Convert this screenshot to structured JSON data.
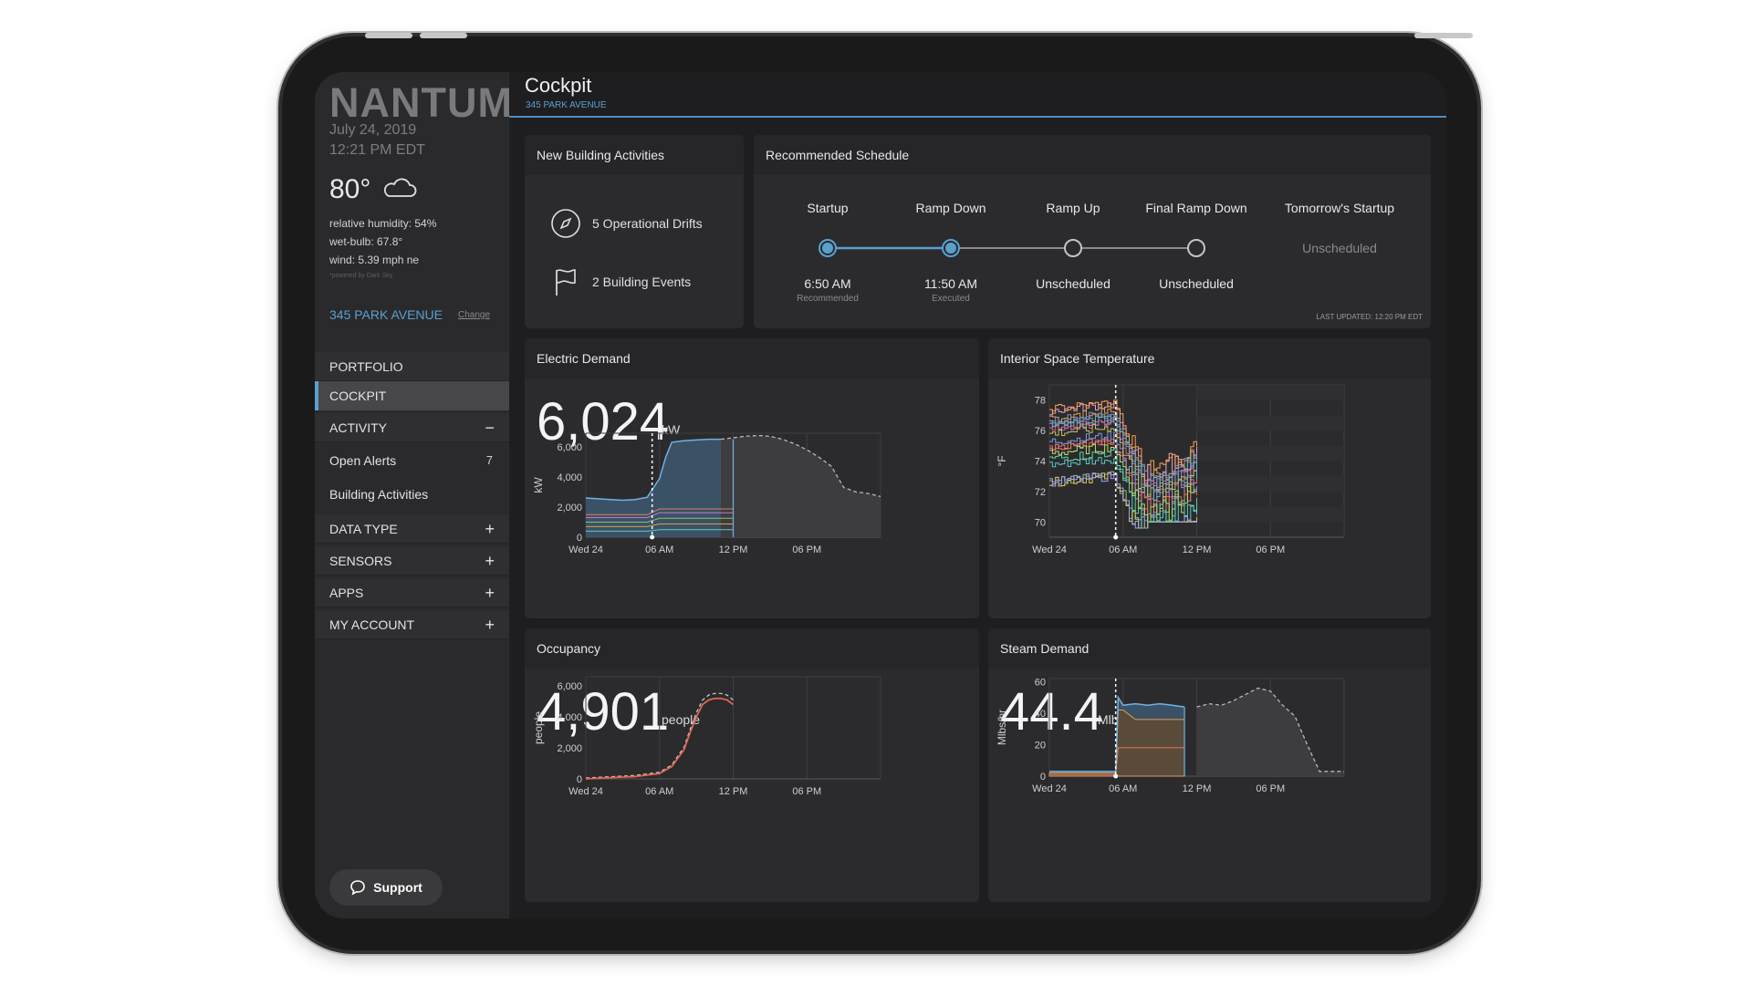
{
  "sidebar": {
    "logo": "NANTUM",
    "date": "July 24, 2019",
    "time": "12:21 PM EDT",
    "temperature": "80°",
    "humidity": "relative humidity: 54%",
    "wetbulb": "wet-bulb: 67.8°",
    "wind": "wind: 5.39 mph ne",
    "powered_by": "*powered by Dark Sky",
    "building": "345 PARK AVENUE",
    "change_label": "Change",
    "nav": {
      "portfolio": "PORTFOLIO",
      "cockpit": "COCKPIT",
      "activity": "ACTIVITY",
      "activity_sign": "−",
      "open_alerts": "Open Alerts",
      "open_alerts_count": "7",
      "building_activities": "Building Activities",
      "data_type": "DATA TYPE",
      "sensors": "SENSORS",
      "apps": "APPS",
      "my_account": "MY ACCOUNT",
      "plus": "+"
    },
    "support_label": "Support"
  },
  "page": {
    "title": "Cockpit",
    "subtitle": "345 PARK AVENUE"
  },
  "activities": {
    "title": "New Building Activities",
    "drifts": "5 Operational Drifts",
    "events": "2 Building Events"
  },
  "schedule": {
    "title": "Recommended Schedule",
    "steps": [
      {
        "label": "Startup",
        "time": "6:50 AM",
        "note": "Recommended"
      },
      {
        "label": "Ramp Down",
        "time": "11:50 AM",
        "note": "Executed"
      },
      {
        "label": "Ramp Up",
        "time": "Unscheduled",
        "note": ""
      },
      {
        "label": "Final Ramp Down",
        "time": "Unscheduled",
        "note": ""
      }
    ],
    "tomorrow_label": "Tomorrow's Startup",
    "tomorrow_value": "Unscheduled",
    "last_updated": "LAST UPDATED: 12:20 PM EDT",
    "colors": {
      "accent": "#5aa0cf"
    }
  },
  "x_ticks": [
    "Wed 24",
    "06 AM",
    "12 PM",
    "06 PM"
  ],
  "electric": {
    "title": "Electric Demand",
    "value": "6,024",
    "unit": "kW"
  },
  "temperature": {
    "title": "Interior Space Temperature"
  },
  "occupancy": {
    "title": "Occupancy",
    "value": "4,901",
    "unit": "people"
  },
  "steam": {
    "title": "Steam Demand",
    "value": "44.4",
    "unit": "Mlbs/hr"
  },
  "chart_data": [
    {
      "type": "area",
      "id": "electric",
      "ylabel": "kW",
      "ylim": [
        0,
        7000
      ],
      "yticks": [
        "6,000",
        "4,000",
        "2,000",
        "0"
      ],
      "ytick_values": [
        6000,
        4000,
        2000,
        0
      ],
      "x": [
        0,
        1,
        2,
        3,
        4,
        5,
        6,
        6.5,
        7,
        8,
        9,
        10,
        11,
        12,
        13,
        14,
        15,
        16,
        17,
        18,
        19,
        20,
        21,
        22,
        23,
        24
      ],
      "series": [
        {
          "values": [
            2600,
            2550,
            2500,
            2450,
            2500,
            2650,
            3900,
            5300,
            6300,
            6400,
            6450,
            6500,
            6500,
            null,
            null,
            null,
            null,
            null,
            null,
            null,
            null,
            null,
            null,
            null,
            null,
            null
          ]
        },
        {
          "values": [
            null,
            null,
            null,
            null,
            null,
            null,
            null,
            null,
            null,
            null,
            null,
            null,
            6500,
            6600,
            6700,
            6750,
            6700,
            6500,
            6200,
            5800,
            5300,
            4700,
            3300,
            3000,
            2900,
            2700
          ]
        }
      ],
      "now_x": 5.4,
      "colors": {
        "actual": "#5aa0cf",
        "forecast": "#9a9a9d"
      }
    },
    {
      "type": "line",
      "id": "temperature",
      "ylabel": "°F",
      "ylim": [
        69,
        79
      ],
      "yticks": [
        "78",
        "76",
        "74",
        "72",
        "70"
      ],
      "ytick_values": [
        78,
        76,
        74,
        72,
        70
      ],
      "now_x": 5.4
    },
    {
      "type": "line",
      "id": "occupancy",
      "ylabel": "people",
      "ylim": [
        0,
        6500
      ],
      "yticks": [
        "6,000",
        "4,000",
        "2,000",
        "0"
      ],
      "ytick_values": [
        6000,
        4000,
        2000,
        0
      ],
      "x": [
        0,
        2,
        4,
        6,
        7,
        8,
        8.5,
        9,
        9.5,
        10,
        10.5,
        11,
        11.5,
        12
      ],
      "series": [
        {
          "values": [
            0,
            80,
            150,
            350,
            800,
            1900,
            3000,
            4000,
            4800,
            5100,
            5200,
            5200,
            5100,
            4800
          ]
        }
      ],
      "colors": {
        "actual": "#e06450",
        "forecast": "#cfcfd1"
      }
    },
    {
      "type": "area",
      "id": "steam",
      "ylabel": "Mlbs/hr",
      "ylim": [
        0,
        62
      ],
      "yticks": [
        "60",
        "40",
        "20",
        "0"
      ],
      "ytick_values": [
        60,
        40,
        20,
        0
      ],
      "x": [
        0,
        3,
        5.4,
        5.6,
        6,
        7,
        8,
        9,
        10,
        11,
        12,
        13,
        14,
        15,
        16,
        17,
        18,
        19,
        20,
        21,
        22,
        23,
        24
      ],
      "series": [
        {
          "values": [
            3,
            3,
            3,
            50,
            45,
            46,
            45,
            46,
            45,
            44,
            null,
            null,
            null,
            null,
            null,
            null,
            null,
            null,
            null,
            null,
            null,
            null,
            null
          ]
        },
        {
          "values": [
            null,
            null,
            null,
            null,
            null,
            null,
            null,
            null,
            null,
            null,
            44,
            46,
            45,
            48,
            52,
            56,
            54,
            45,
            38,
            20,
            3,
            3,
            3
          ]
        }
      ],
      "now_x": 5.4,
      "colors": {
        "actual": "#5aa0cf",
        "forecast": "#9a9a9d"
      }
    }
  ]
}
